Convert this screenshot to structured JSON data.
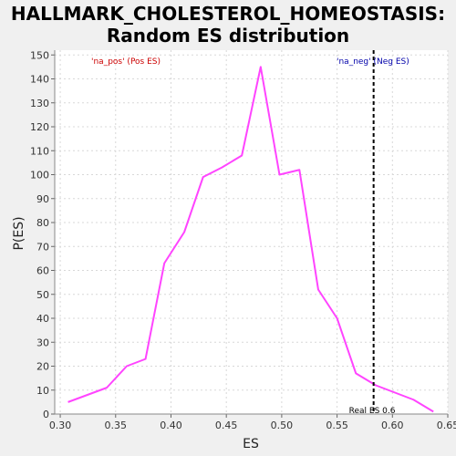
{
  "chart_data": {
    "type": "line",
    "title_line1": "HALLMARK_CHOLESTEROL_HOMEOSTASIS:",
    "title_line2": "Random ES distribution",
    "xlabel": "ES",
    "ylabel": "P(ES)",
    "xlim": [
      0.295,
      0.65
    ],
    "ylim": [
      0,
      152
    ],
    "x_ticks": [
      "0.30",
      "0.35",
      "0.40",
      "0.45",
      "0.50",
      "0.55",
      "0.60",
      "0.65"
    ],
    "x_tick_values": [
      0.3,
      0.35,
      0.4,
      0.45,
      0.5,
      0.55,
      0.6,
      0.65
    ],
    "y_ticks": [
      "0",
      "10",
      "20",
      "30",
      "40",
      "50",
      "60",
      "70",
      "80",
      "90",
      "100",
      "110",
      "120",
      "130",
      "140",
      "150"
    ],
    "y_tick_values": [
      0,
      10,
      20,
      30,
      40,
      50,
      60,
      70,
      80,
      90,
      100,
      110,
      120,
      130,
      140,
      150
    ],
    "grid": true,
    "series": [
      {
        "color": "#ff44ff",
        "x": [
          0.307,
          0.342,
          0.36,
          0.377,
          0.394,
          0.412,
          0.429,
          0.446,
          0.464,
          0.481,
          0.498,
          0.516,
          0.533,
          0.55,
          0.567,
          0.585,
          0.619,
          0.637
        ],
        "y": [
          5,
          11,
          20,
          23,
          63,
          76,
          99,
          103,
          108,
          145,
          100,
          102,
          52,
          40,
          17,
          12,
          6,
          1
        ]
      }
    ],
    "real_es": {
      "value": 0.583,
      "label": "Real ES 0.6",
      "color": "#000000"
    },
    "annotations": {
      "pos": {
        "text": "'na_pos' (Pos ES)",
        "color": "#cc0000"
      },
      "neg": {
        "text": "'na_neg' (Neg ES)",
        "color": "#0000aa"
      }
    }
  }
}
